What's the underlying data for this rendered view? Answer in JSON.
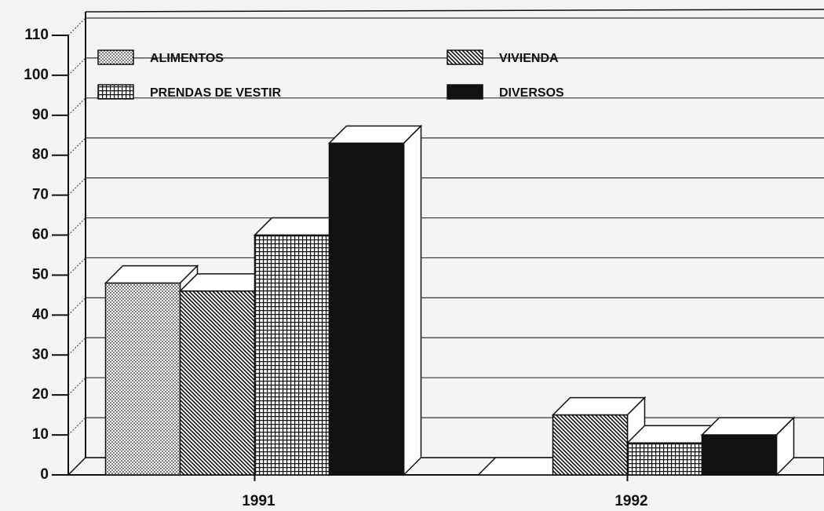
{
  "chart_data": {
    "type": "bar3d",
    "categories": [
      "1991",
      "1992"
    ],
    "series": [
      {
        "name": "ALIMENTOS",
        "color": "#ffffff",
        "pattern": "dots",
        "values": [
          48,
          0
        ]
      },
      {
        "name": "VIVIENDA",
        "color": "#ffffff",
        "pattern": "diagonal",
        "values": [
          46,
          15
        ]
      },
      {
        "name": "PRENDAS DE VESTIR",
        "color": "#ffffff",
        "pattern": "grid",
        "values": [
          60,
          8
        ]
      },
      {
        "name": "DIVERSOS",
        "color": "#111111",
        "pattern": "solid",
        "values": [
          83,
          10
        ]
      }
    ],
    "ylim": [
      0,
      110
    ],
    "yticks": [
      0,
      10,
      20,
      30,
      40,
      50,
      60,
      70,
      80,
      90,
      100,
      110
    ],
    "grid": true
  }
}
